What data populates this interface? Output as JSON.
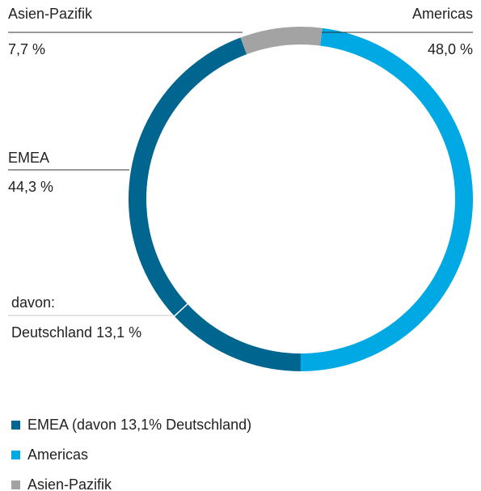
{
  "chart_data": {
    "type": "donut",
    "categories": [
      "EMEA",
      "Americas",
      "Asien-Pazifik"
    ],
    "values": [
      44.3,
      48.0,
      7.7
    ],
    "value_labels": [
      "44,3 %",
      "48,0 %",
      "7,7 %"
    ],
    "colors": [
      "#00658f",
      "#00a8e4",
      "#a3a3a3"
    ],
    "legend": [
      "EMEA (davon 13,1% Deutschland)",
      "Americas",
      "Asien-Pazifik"
    ],
    "sub_segment": {
      "prefix": "davon:",
      "name": "Deutschland",
      "value": 13.1,
      "value_label": "13,1 %"
    }
  }
}
